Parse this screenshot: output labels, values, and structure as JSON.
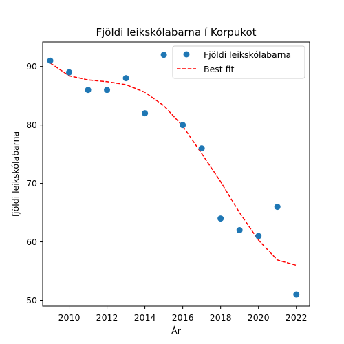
{
  "chart_data": {
    "type": "scatter",
    "title": "Fjöldi leikskólabarna í Korpukot",
    "xlabel": "Ár",
    "ylabel": "fjöldi leikskólabarna",
    "xlim": [
      2008.6,
      2022.7
    ],
    "ylim": [
      49,
      94.2
    ],
    "xticks": [
      2010,
      2012,
      2014,
      2016,
      2018,
      2020,
      2022
    ],
    "yticks": [
      50,
      60,
      70,
      80,
      90
    ],
    "grid": false,
    "legend_position": "top-right",
    "colors": {
      "points": "#1f77b4",
      "fit": "#ff0000"
    },
    "series": [
      {
        "name": "Fjöldi leikskólabarna",
        "kind": "scatter",
        "x": [
          2009,
          2010,
          2011,
          2012,
          2013,
          2014,
          2015,
          2016,
          2017,
          2018,
          2019,
          2020,
          2021,
          2022
        ],
        "y": [
          91,
          89,
          86,
          86,
          88,
          82,
          92,
          80,
          76,
          64,
          62,
          61,
          66,
          51
        ]
      },
      {
        "name": "Best fit",
        "kind": "line",
        "style": "dashed",
        "x": [
          2009,
          2010,
          2011,
          2012,
          2013,
          2014,
          2015,
          2016,
          2017,
          2018,
          2019,
          2020,
          2021,
          2022
        ],
        "y": [
          90.6,
          88.4,
          87.7,
          87.4,
          86.9,
          85.6,
          83.3,
          79.8,
          75.1,
          70.3,
          65.0,
          60.3,
          56.9,
          56.0
        ]
      }
    ]
  }
}
